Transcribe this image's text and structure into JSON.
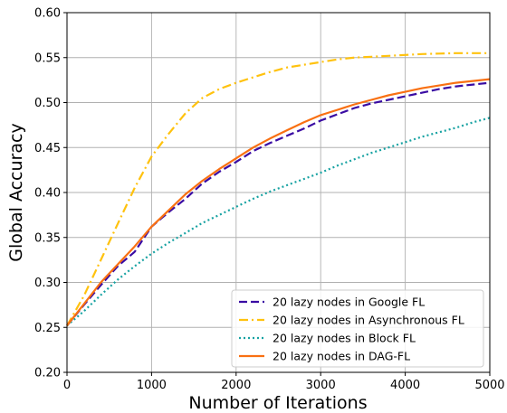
{
  "chart_data": {
    "type": "line",
    "title": "",
    "xlabel": "Number of Iterations",
    "ylabel": "Global Accuracy",
    "xlim": [
      0,
      5000
    ],
    "ylim": [
      0.2,
      0.6
    ],
    "x_ticks": [
      0,
      1000,
      2000,
      3000,
      4000,
      5000
    ],
    "y_ticks": [
      0.2,
      0.25,
      0.3,
      0.35,
      0.4,
      0.45,
      0.5,
      0.55,
      0.6
    ],
    "x_tick_labels": [
      "0",
      "1000",
      "2000",
      "3000",
      "4000",
      "5000"
    ],
    "y_tick_labels": [
      "0.20",
      "0.25",
      "0.30",
      "0.35",
      "0.40",
      "0.45",
      "0.50",
      "0.55",
      "0.60"
    ],
    "grid": true,
    "legend_position": "bottom-right",
    "series": [
      {
        "name": "20 lazy nodes in Google FL",
        "color": "#3a0ca3",
        "dash": "dashed",
        "x": [
          0,
          200,
          400,
          600,
          800,
          1000,
          1200,
          1400,
          1600,
          1800,
          2000,
          2200,
          2400,
          2600,
          2800,
          3000,
          3200,
          3400,
          3600,
          3800,
          4000,
          4200,
          4400,
          4600,
          4800,
          5000
        ],
        "y": [
          0.252,
          0.275,
          0.297,
          0.318,
          0.334,
          0.362,
          0.378,
          0.393,
          0.41,
          0.423,
          0.434,
          0.446,
          0.455,
          0.463,
          0.471,
          0.48,
          0.487,
          0.494,
          0.499,
          0.503,
          0.507,
          0.511,
          0.515,
          0.518,
          0.52,
          0.522
        ]
      },
      {
        "name": "20 lazy nodes in Asynchronous FL",
        "color": "#ffc20e",
        "dash": "dashdot",
        "x": [
          0,
          200,
          400,
          600,
          800,
          1000,
          1200,
          1400,
          1600,
          1800,
          2000,
          2200,
          2400,
          2600,
          2800,
          3000,
          3200,
          3400,
          3600,
          3800,
          4000,
          4200,
          4400,
          4600,
          4800,
          5000
        ],
        "y": [
          0.252,
          0.285,
          0.325,
          0.365,
          0.405,
          0.44,
          0.465,
          0.488,
          0.505,
          0.515,
          0.522,
          0.528,
          0.534,
          0.539,
          0.542,
          0.545,
          0.548,
          0.55,
          0.551,
          0.552,
          0.553,
          0.554,
          0.5545,
          0.555,
          0.555,
          0.555
        ]
      },
      {
        "name": "20 lazy nodes in Block FL",
        "color": "#17a2a2",
        "dash": "dotted",
        "x": [
          0,
          200,
          400,
          600,
          800,
          1000,
          1200,
          1400,
          1600,
          1800,
          2000,
          2200,
          2400,
          2600,
          2800,
          3000,
          3200,
          3400,
          3600,
          3800,
          4000,
          4200,
          4400,
          4600,
          4800,
          5000
        ],
        "y": [
          0.252,
          0.268,
          0.286,
          0.303,
          0.318,
          0.332,
          0.344,
          0.355,
          0.366,
          0.375,
          0.384,
          0.393,
          0.401,
          0.408,
          0.415,
          0.422,
          0.43,
          0.437,
          0.444,
          0.45,
          0.456,
          0.462,
          0.467,
          0.472,
          0.478,
          0.483
        ]
      },
      {
        "name": "20 lazy nodes in DAG-FL",
        "color": "#f97012",
        "dash": "solid",
        "x": [
          0,
          200,
          400,
          600,
          800,
          1000,
          1200,
          1400,
          1600,
          1800,
          2000,
          2200,
          2400,
          2600,
          2800,
          3000,
          3200,
          3400,
          3600,
          3800,
          4000,
          4200,
          4400,
          4600,
          4800,
          5000
        ],
        "y": [
          0.252,
          0.276,
          0.3,
          0.32,
          0.34,
          0.362,
          0.38,
          0.398,
          0.413,
          0.426,
          0.438,
          0.45,
          0.46,
          0.469,
          0.478,
          0.486,
          0.492,
          0.498,
          0.503,
          0.508,
          0.512,
          0.516,
          0.519,
          0.522,
          0.524,
          0.526
        ]
      }
    ]
  }
}
